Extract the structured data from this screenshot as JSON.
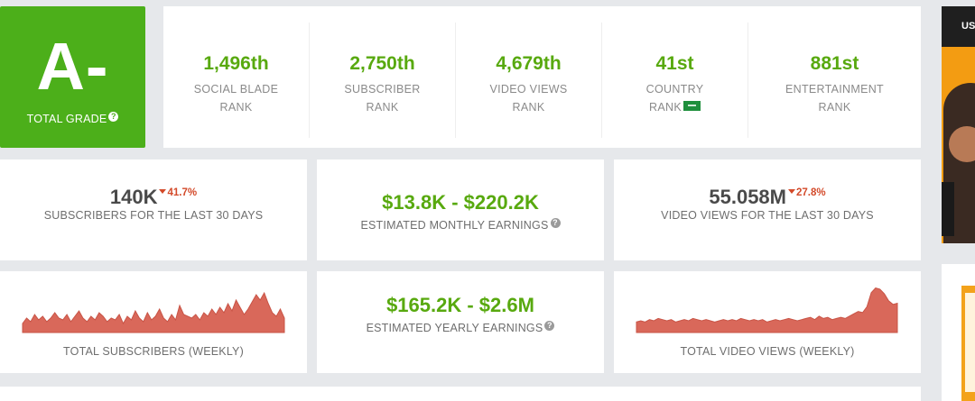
{
  "grade": {
    "letter": "A-",
    "label": "TOTAL GRADE",
    "help_icon": "question-icon"
  },
  "ranks": [
    {
      "value": "1,496th",
      "line1": "SOCIAL BLADE",
      "line2": "RANK"
    },
    {
      "value": "2,750th",
      "line1": "SUBSCRIBER",
      "line2": "RANK"
    },
    {
      "value": "4,679th",
      "line1": "VIDEO VIEWS",
      "line2": "RANK"
    },
    {
      "value": "41st",
      "line1": "COUNTRY",
      "line2": "RANK",
      "flag_icon": "country-flag-icon"
    },
    {
      "value": "881st",
      "line1": "ENTERTAINMENT",
      "line2": "RANK"
    }
  ],
  "stats": {
    "subs30": {
      "value": "140K",
      "delta": "41.7%",
      "label": "SUBSCRIBERS FOR THE LAST 30 DAYS"
    },
    "monthly": {
      "value": "$13.8K - $220.2K",
      "label": "ESTIMATED MONTHLY EARNINGS"
    },
    "views30": {
      "value": "55.058M",
      "delta": "27.8%",
      "label": "VIDEO VIEWS FOR THE LAST 30 DAYS"
    },
    "yearly": {
      "value": "$165.2K - $2.6M",
      "label": "ESTIMATED YEARLY EARNINGS"
    }
  },
  "charts": {
    "subs": {
      "label": "TOTAL SUBSCRIBERS (WEEKLY)"
    },
    "views": {
      "label": "TOTAL VIDEO VIEWS (WEEKLY)"
    }
  },
  "side": {
    "banner_text": "US"
  },
  "colors": {
    "green": "#4caf1a",
    "accent_green": "#58a90f",
    "negative": "#d34a2a",
    "spark": "#d9685a"
  },
  "chart_data": [
    {
      "type": "area",
      "title": "TOTAL SUBSCRIBERS (WEEKLY)",
      "values": [
        5,
        8,
        6,
        10,
        7,
        9,
        6,
        8,
        11,
        8,
        7,
        10,
        6,
        9,
        12,
        8,
        6,
        9,
        7,
        11,
        9,
        6,
        8,
        7,
        10,
        5,
        9,
        7,
        12,
        8,
        6,
        11,
        7,
        9,
        13,
        8,
        6,
        10,
        7,
        15,
        10,
        9,
        8,
        10,
        7,
        11,
        9,
        13,
        10,
        14,
        11,
        16,
        12,
        18,
        14,
        10,
        13,
        17,
        21,
        18,
        22,
        16,
        11,
        9,
        13,
        8
      ],
      "ylim": [
        0,
        24
      ]
    },
    {
      "type": "area",
      "title": "TOTAL VIDEO VIEWS (WEEKLY)",
      "values": [
        9,
        10,
        9,
        11,
        10,
        12,
        11,
        10,
        11,
        9,
        10,
        11,
        10,
        12,
        11,
        10,
        11,
        10,
        9,
        10,
        11,
        10,
        11,
        10,
        12,
        11,
        10,
        11,
        10,
        11,
        9,
        10,
        11,
        10,
        11,
        12,
        11,
        10,
        11,
        12,
        13,
        11,
        14,
        12,
        13,
        11,
        12,
        13,
        12,
        14,
        16,
        18,
        17,
        22,
        34,
        38,
        37,
        33,
        27,
        24,
        25
      ],
      "ylim": [
        0,
        40
      ]
    }
  ]
}
